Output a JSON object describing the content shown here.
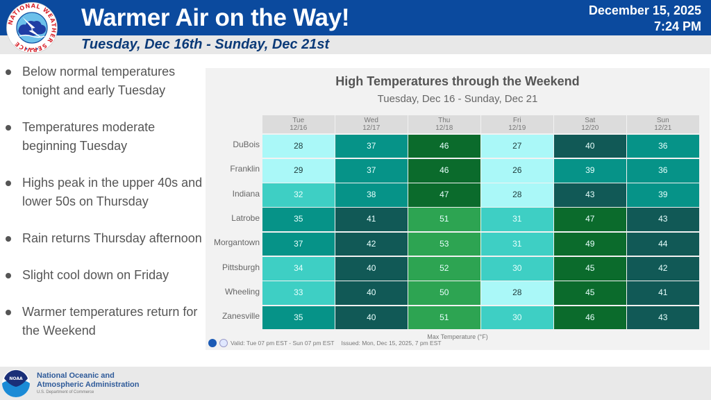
{
  "header": {
    "title": "Warmer Air on the Way!",
    "subtitle": "Tuesday, Dec 16th - Sunday, Dec 21st",
    "date": "December 15, 2025",
    "time": "7:24 PM",
    "logo": "nws-logo",
    "logo_text": "NATIONAL WEATHER SERVICE"
  },
  "bullets": [
    "Below normal temperatures tonight and early Tuesday",
    "Temperatures moderate beginning Tuesday",
    "Highs peak in the upper 40s and lower 50s on Thursday",
    "Rain returns Thursday afternoon",
    "Slight cool down on Friday",
    "Warmer temperatures return for the Weekend"
  ],
  "chart": {
    "valid": "Valid: Tue 07 pm EST - Sun 07 pm EST",
    "issued": "Issued: Mon, Dec 15, 2025, 7 pm EST",
    "color_scale": [
      {
        "max": 29,
        "bg": "#aaf8f8",
        "fg": "#1f3a3a"
      },
      {
        "max": 34,
        "bg": "#3ecfc4",
        "fg": "#e8fffd"
      },
      {
        "max": 39,
        "bg": "#069388",
        "fg": "#e8fffd"
      },
      {
        "max": 44,
        "bg": "#115956",
        "fg": "#e8fffd"
      },
      {
        "max": 49,
        "bg": "#0b6b2c",
        "fg": "#e8fffd"
      },
      {
        "max": 99,
        "bg": "#2da452",
        "fg": "#e8fffd"
      }
    ]
  },
  "chart_data": {
    "type": "heatmap",
    "title": "High Temperatures through the Weekend",
    "subtitle": "Tuesday, Dec 16 - Sunday, Dec 21",
    "xlabel": "Max Temperature (°F)",
    "columns": [
      {
        "day": "Tue",
        "date": "12/16"
      },
      {
        "day": "Wed",
        "date": "12/17"
      },
      {
        "day": "Thu",
        "date": "12/18"
      },
      {
        "day": "Fri",
        "date": "12/19"
      },
      {
        "day": "Sat",
        "date": "12/20"
      },
      {
        "day": "Sun",
        "date": "12/21"
      }
    ],
    "rows": [
      "DuBois",
      "Franklin",
      "Indiana",
      "Latrobe",
      "Morgantown",
      "Pittsburgh",
      "Wheeling",
      "Zanesville"
    ],
    "values": [
      [
        28,
        37,
        46,
        27,
        40,
        36
      ],
      [
        29,
        37,
        46,
        26,
        39,
        36
      ],
      [
        32,
        38,
        47,
        28,
        43,
        39
      ],
      [
        35,
        41,
        51,
        31,
        47,
        43
      ],
      [
        37,
        42,
        53,
        31,
        49,
        44
      ],
      [
        34,
        40,
        52,
        30,
        45,
        42
      ],
      [
        33,
        40,
        50,
        28,
        45,
        41
      ],
      [
        35,
        40,
        51,
        30,
        46,
        43
      ]
    ]
  },
  "footer": {
    "org_line1": "National Oceanic and",
    "org_line2": "Atmospheric Administration",
    "dept": "U.S. Department of Commerce",
    "logo_text": "NOAA"
  }
}
